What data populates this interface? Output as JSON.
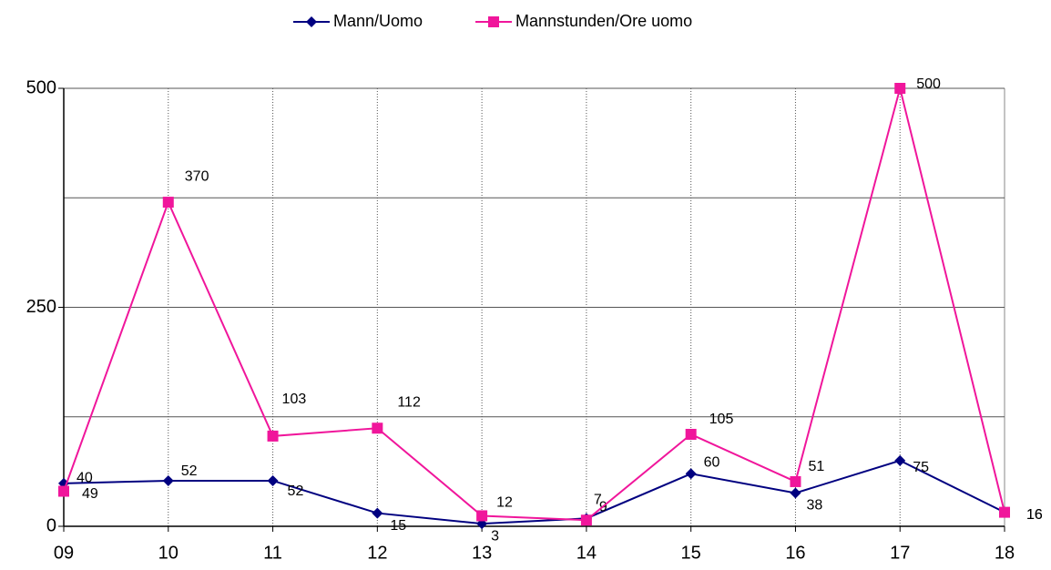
{
  "chart_data": {
    "type": "line",
    "categories": [
      "09",
      "10",
      "11",
      "12",
      "13",
      "14",
      "15",
      "16",
      "17",
      "18"
    ],
    "series": [
      {
        "name": "Mann/Uomo",
        "color": "#000080",
        "marker": "diamond",
        "values": [
          49,
          52,
          52,
          15,
          3,
          9,
          60,
          38,
          75,
          16
        ]
      },
      {
        "name": "Mannstunden/Ore uomo",
        "color": "#f0169b",
        "marker": "square",
        "values": [
          40,
          370,
          103,
          112,
          12,
          7,
          105,
          51,
          500,
          16
        ]
      }
    ],
    "ylim": [
      0,
      500
    ],
    "yticks": [
      0,
      250,
      500
    ],
    "minor_yticks": [
      125,
      375
    ],
    "grid": true,
    "legend": "top"
  }
}
